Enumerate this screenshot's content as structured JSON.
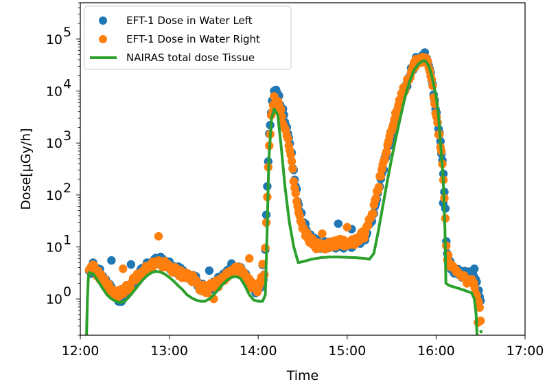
{
  "chart_data": {
    "type": "scatter",
    "xlabel": "Time",
    "ylabel": "Dose[μGy/h]",
    "x_unit": "hours",
    "xlim": [
      12.0,
      17.0
    ],
    "ylim": [
      0.2,
      500000
    ],
    "yscale": "log",
    "xtick_labels": [
      "12:00",
      "13:00",
      "14:00",
      "15:00",
      "16:00",
      "17:00"
    ],
    "ytick_labels": [
      {
        "value": 1,
        "base": "10",
        "exp": "0"
      },
      {
        "value": 10,
        "base": "10",
        "exp": "1"
      },
      {
        "value": 100,
        "base": "10",
        "exp": "2"
      },
      {
        "value": 1000,
        "base": "10",
        "exp": "3"
      },
      {
        "value": 10000,
        "base": "10",
        "exp": "4"
      },
      {
        "value": 100000,
        "base": "10",
        "exp": "5"
      }
    ],
    "legend": {
      "position": "upper-left"
    },
    "series": [
      {
        "name": "EFT-1 Dose in Water Left",
        "kind": "scatter",
        "color": "#1f77b4",
        "profile": [
          [
            12.1,
            3.0
          ],
          [
            12.15,
            4.5
          ],
          [
            12.2,
            3.5
          ],
          [
            12.25,
            2.8
          ],
          [
            12.3,
            2.0
          ],
          [
            12.35,
            1.5
          ],
          [
            12.4,
            1.1
          ],
          [
            12.45,
            1.0
          ],
          [
            12.5,
            1.2
          ],
          [
            12.55,
            1.6
          ],
          [
            12.6,
            2.1
          ],
          [
            12.65,
            2.8
          ],
          [
            12.7,
            3.5
          ],
          [
            12.75,
            4.2
          ],
          [
            12.8,
            4.8
          ],
          [
            12.85,
            5.2
          ],
          [
            12.9,
            5.5
          ],
          [
            12.95,
            5.0
          ],
          [
            13.0,
            4.4
          ],
          [
            13.05,
            3.8
          ],
          [
            13.1,
            3.5
          ],
          [
            13.15,
            3.2
          ],
          [
            13.2,
            3.0
          ],
          [
            13.25,
            2.8
          ],
          [
            13.3,
            2.3
          ],
          [
            13.35,
            1.8
          ],
          [
            13.4,
            1.5
          ],
          [
            13.45,
            1.6
          ],
          [
            13.5,
            1.9
          ],
          [
            13.55,
            2.2
          ],
          [
            13.6,
            2.6
          ],
          [
            13.65,
            3.1
          ],
          [
            13.7,
            3.6
          ],
          [
            13.75,
            3.9
          ],
          [
            13.8,
            3.5
          ],
          [
            13.85,
            2.8
          ],
          [
            13.9,
            2.0
          ],
          [
            13.95,
            1.6
          ],
          [
            14.0,
            1.5
          ],
          [
            14.03,
            2.0
          ],
          [
            14.07,
            3.0
          ],
          [
            14.1,
            100
          ],
          [
            14.12,
            1000
          ],
          [
            14.15,
            5500
          ],
          [
            14.18,
            9500
          ],
          [
            14.22,
            9000
          ],
          [
            14.26,
            5000
          ],
          [
            14.3,
            3000
          ],
          [
            14.34,
            1500
          ],
          [
            14.38,
            500
          ],
          [
            14.42,
            150
          ],
          [
            14.46,
            60
          ],
          [
            14.5,
            30
          ],
          [
            14.55,
            20
          ],
          [
            14.6,
            15
          ],
          [
            14.65,
            12
          ],
          [
            14.7,
            11
          ],
          [
            14.8,
            11
          ],
          [
            14.9,
            11
          ],
          [
            15.0,
            11
          ],
          [
            15.1,
            12
          ],
          [
            15.2,
            16
          ],
          [
            15.25,
            25
          ],
          [
            15.3,
            50
          ],
          [
            15.35,
            120
          ],
          [
            15.4,
            300
          ],
          [
            15.45,
            700
          ],
          [
            15.5,
            1500
          ],
          [
            15.55,
            3000
          ],
          [
            15.6,
            6000
          ],
          [
            15.65,
            11000
          ],
          [
            15.7,
            20000
          ],
          [
            15.75,
            32000
          ],
          [
            15.8,
            45000
          ],
          [
            15.85,
            50000
          ],
          [
            15.9,
            45000
          ],
          [
            15.93,
            30000
          ],
          [
            15.96,
            15000
          ],
          [
            16.0,
            4000
          ],
          [
            16.05,
            1000
          ],
          [
            16.08,
            300
          ],
          [
            16.1,
            80
          ],
          [
            16.12,
            8
          ],
          [
            16.15,
            5
          ],
          [
            16.2,
            3.5
          ],
          [
            16.25,
            3.5
          ],
          [
            16.3,
            3.0
          ],
          [
            16.35,
            2.8
          ],
          [
            16.4,
            2.8
          ],
          [
            16.45,
            2.2
          ],
          [
            16.5,
            0.8
          ]
        ],
        "outliers": [
          [
            12.35,
            5.5
          ],
          [
            12.57,
            4.6
          ],
          [
            13.45,
            3.5
          ],
          [
            13.7,
            4.8
          ],
          [
            14.05,
            4.5
          ],
          [
            14.9,
            28
          ],
          [
            15.05,
            22
          ],
          [
            16.08,
            70
          ],
          [
            16.43,
            3.8
          ]
        ]
      },
      {
        "name": "EFT-1 Dose in Water Right",
        "kind": "scatter",
        "color": "#ff7f0e",
        "profile": [
          [
            12.1,
            3.2
          ],
          [
            12.15,
            4.0
          ],
          [
            12.2,
            3.0
          ],
          [
            12.25,
            2.4
          ],
          [
            12.3,
            1.8
          ],
          [
            12.35,
            1.4
          ],
          [
            12.4,
            1.2
          ],
          [
            12.45,
            1.3
          ],
          [
            12.5,
            1.5
          ],
          [
            12.55,
            1.8
          ],
          [
            12.6,
            2.2
          ],
          [
            12.65,
            2.7
          ],
          [
            12.7,
            3.2
          ],
          [
            12.75,
            3.7
          ],
          [
            12.8,
            4.2
          ],
          [
            12.85,
            4.6
          ],
          [
            12.9,
            4.8
          ],
          [
            12.95,
            4.5
          ],
          [
            13.0,
            4.0
          ],
          [
            13.05,
            3.6
          ],
          [
            13.1,
            3.2
          ],
          [
            13.15,
            3.0
          ],
          [
            13.2,
            2.8
          ],
          [
            13.25,
            2.5
          ],
          [
            13.3,
            2.1
          ],
          [
            13.35,
            1.7
          ],
          [
            13.4,
            1.5
          ],
          [
            13.45,
            1.6
          ],
          [
            13.5,
            1.8
          ],
          [
            13.55,
            2.0
          ],
          [
            13.6,
            2.4
          ],
          [
            13.65,
            2.8
          ],
          [
            13.7,
            3.3
          ],
          [
            13.75,
            3.8
          ],
          [
            13.8,
            3.4
          ],
          [
            13.85,
            2.6
          ],
          [
            13.9,
            2.0
          ],
          [
            13.95,
            1.7
          ],
          [
            14.0,
            1.6
          ],
          [
            14.03,
            2.2
          ],
          [
            14.07,
            3.2
          ],
          [
            14.1,
            80
          ],
          [
            14.12,
            800
          ],
          [
            14.15,
            3500
          ],
          [
            14.18,
            7500
          ],
          [
            14.22,
            6000
          ],
          [
            14.26,
            3500
          ],
          [
            14.3,
            2000
          ],
          [
            14.34,
            1000
          ],
          [
            14.38,
            350
          ],
          [
            14.42,
            100
          ],
          [
            14.46,
            40
          ],
          [
            14.5,
            22
          ],
          [
            14.55,
            16
          ],
          [
            14.6,
            13
          ],
          [
            14.65,
            11
          ],
          [
            14.7,
            10
          ],
          [
            14.8,
            11
          ],
          [
            14.9,
            12
          ],
          [
            15.0,
            12
          ],
          [
            15.1,
            13
          ],
          [
            15.2,
            18
          ],
          [
            15.25,
            30
          ],
          [
            15.3,
            60
          ],
          [
            15.35,
            150
          ],
          [
            15.4,
            380
          ],
          [
            15.45,
            900
          ],
          [
            15.5,
            1800
          ],
          [
            15.55,
            3500
          ],
          [
            15.6,
            7000
          ],
          [
            15.65,
            12000
          ],
          [
            15.7,
            20000
          ],
          [
            15.75,
            30000
          ],
          [
            15.8,
            40000
          ],
          [
            15.85,
            42000
          ],
          [
            15.9,
            38000
          ],
          [
            15.93,
            25000
          ],
          [
            15.96,
            12000
          ],
          [
            16.0,
            3500
          ],
          [
            16.05,
            900
          ],
          [
            16.08,
            250
          ],
          [
            16.1,
            60
          ],
          [
            16.12,
            7
          ],
          [
            16.15,
            5
          ],
          [
            16.2,
            3.5
          ],
          [
            16.25,
            3.0
          ],
          [
            16.3,
            2.5
          ],
          [
            16.35,
            2.3
          ],
          [
            16.4,
            2.0
          ],
          [
            16.45,
            1.5
          ],
          [
            16.5,
            0.45
          ]
        ],
        "outliers": [
          [
            12.88,
            16
          ],
          [
            13.9,
            6
          ],
          [
            12.48,
            3.8
          ],
          [
            13.5,
            1.0
          ],
          [
            14.05,
            4.7
          ],
          [
            15.0,
            24
          ],
          [
            14.72,
            18
          ],
          [
            16.47,
            0.35
          ]
        ]
      },
      {
        "name": "NAIRAS total dose Tissue",
        "kind": "line",
        "color": "#2ca02c",
        "points": [
          [
            12.07,
            0.2
          ],
          [
            12.08,
            1.0
          ],
          [
            12.09,
            2.5
          ],
          [
            12.1,
            3.2
          ],
          [
            12.15,
            3.0
          ],
          [
            12.2,
            2.2
          ],
          [
            12.25,
            1.6
          ],
          [
            12.3,
            1.2
          ],
          [
            12.35,
            1.0
          ],
          [
            12.4,
            0.9
          ],
          [
            12.45,
            0.85
          ],
          [
            12.5,
            0.9
          ],
          [
            12.55,
            1.1
          ],
          [
            12.6,
            1.4
          ],
          [
            12.65,
            1.8
          ],
          [
            12.7,
            2.3
          ],
          [
            12.75,
            2.8
          ],
          [
            12.8,
            3.2
          ],
          [
            12.85,
            3.4
          ],
          [
            12.9,
            3.3
          ],
          [
            12.95,
            3.0
          ],
          [
            13.0,
            2.6
          ],
          [
            13.05,
            2.2
          ],
          [
            13.1,
            1.8
          ],
          [
            13.15,
            1.5
          ],
          [
            13.2,
            1.2
          ],
          [
            13.25,
            1.05
          ],
          [
            13.3,
            0.95
          ],
          [
            13.35,
            0.9
          ],
          [
            13.4,
            0.9
          ],
          [
            13.45,
            1.0
          ],
          [
            13.5,
            1.2
          ],
          [
            13.55,
            1.5
          ],
          [
            13.6,
            1.9
          ],
          [
            13.65,
            2.3
          ],
          [
            13.7,
            2.6
          ],
          [
            13.75,
            2.7
          ],
          [
            13.8,
            2.5
          ],
          [
            13.85,
            1.8
          ],
          [
            13.9,
            1.2
          ],
          [
            13.95,
            0.95
          ],
          [
            14.0,
            0.9
          ],
          [
            14.05,
            0.9
          ],
          [
            14.08,
            1.2
          ],
          [
            14.1,
            20
          ],
          [
            14.12,
            500
          ],
          [
            14.15,
            3000
          ],
          [
            14.18,
            4500
          ],
          [
            14.22,
            3500
          ],
          [
            14.26,
            800
          ],
          [
            14.3,
            150
          ],
          [
            14.35,
            30
          ],
          [
            14.4,
            10
          ],
          [
            14.45,
            5.0
          ],
          [
            14.5,
            5.2
          ],
          [
            14.6,
            5.8
          ],
          [
            14.7,
            6.2
          ],
          [
            14.8,
            6.4
          ],
          [
            14.9,
            6.4
          ],
          [
            15.0,
            6.3
          ],
          [
            15.1,
            6.2
          ],
          [
            15.2,
            6.0
          ],
          [
            15.25,
            5.8
          ],
          [
            15.3,
            7.5
          ],
          [
            15.35,
            20
          ],
          [
            15.4,
            60
          ],
          [
            15.45,
            180
          ],
          [
            15.5,
            500
          ],
          [
            15.55,
            1300
          ],
          [
            15.6,
            3200
          ],
          [
            15.65,
            7500
          ],
          [
            15.7,
            15000
          ],
          [
            15.75,
            25000
          ],
          [
            15.8,
            33000
          ],
          [
            15.85,
            38000
          ],
          [
            15.88,
            38000
          ],
          [
            15.92,
            30000
          ],
          [
            15.95,
            20000
          ],
          [
            16.0,
            8000
          ],
          [
            16.03,
            3000
          ],
          [
            16.05,
            1000
          ],
          [
            16.08,
            200
          ],
          [
            16.1,
            20
          ],
          [
            16.11,
            2.0
          ],
          [
            16.15,
            1.8
          ],
          [
            16.2,
            1.7
          ],
          [
            16.25,
            1.6
          ],
          [
            16.3,
            1.5
          ],
          [
            16.35,
            1.4
          ],
          [
            16.4,
            1.3
          ],
          [
            16.43,
            1.0
          ],
          [
            16.45,
            0.5
          ],
          [
            16.46,
            0.2
          ]
        ],
        "tail": [
          [
            16.5,
            0.25
          ],
          [
            16.51,
            0.22
          ]
        ]
      }
    ]
  }
}
